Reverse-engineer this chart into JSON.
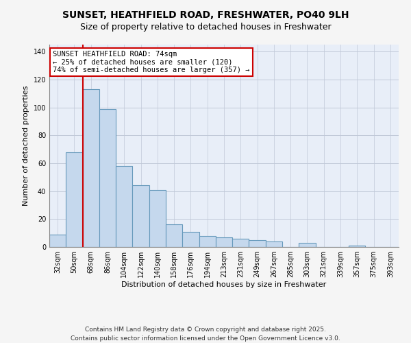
{
  "title": "SUNSET, HEATHFIELD ROAD, FRESHWATER, PO40 9LH",
  "subtitle": "Size of property relative to detached houses in Freshwater",
  "xlabel": "Distribution of detached houses by size in Freshwater",
  "ylabel": "Number of detached properties",
  "bar_labels": [
    "32sqm",
    "50sqm",
    "68sqm",
    "86sqm",
    "104sqm",
    "122sqm",
    "140sqm",
    "158sqm",
    "176sqm",
    "194sqm",
    "213sqm",
    "231sqm",
    "249sqm",
    "267sqm",
    "285sqm",
    "303sqm",
    "321sqm",
    "339sqm",
    "357sqm",
    "375sqm",
    "393sqm"
  ],
  "bar_values": [
    9,
    68,
    113,
    99,
    58,
    44,
    41,
    16,
    11,
    8,
    7,
    6,
    5,
    4,
    0,
    3,
    0,
    0,
    1,
    0,
    0
  ],
  "bar_color": "#c5d8ed",
  "bar_edgecolor": "#6699bb",
  "vline_color": "#cc0000",
  "vline_pos": 2.0,
  "ylim": [
    0,
    145
  ],
  "yticks": [
    0,
    20,
    40,
    60,
    80,
    100,
    120,
    140
  ],
  "annotation_title": "SUNSET HEATHFIELD ROAD: 74sqm",
  "annotation_line1": "← 25% of detached houses are smaller (120)",
  "annotation_line2": "74% of semi-detached houses are larger (357) →",
  "footer1": "Contains HM Land Registry data © Crown copyright and database right 2025.",
  "footer2": "Contains public sector information licensed under the Open Government Licence v3.0.",
  "background_color": "#f5f5f5",
  "plot_bg_color": "#e8eef8",
  "grid_color": "#c0c8d8",
  "title_fontsize": 10,
  "subtitle_fontsize": 9,
  "axis_label_fontsize": 8,
  "tick_fontsize": 7,
  "annotation_fontsize": 7.5,
  "footer_fontsize": 6.5
}
